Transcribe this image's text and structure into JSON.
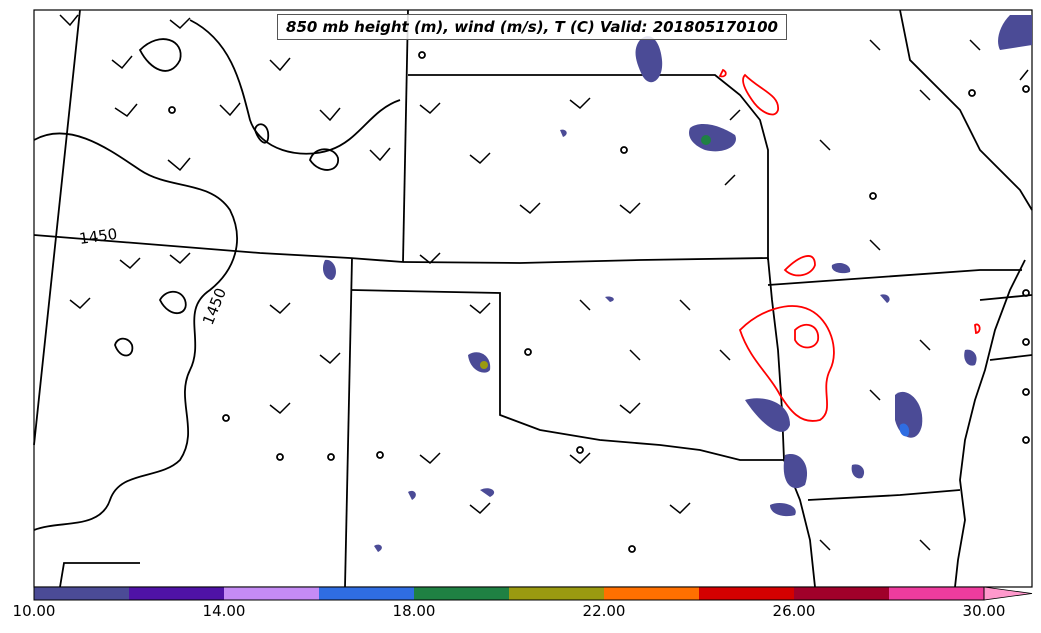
{
  "title": "850 mb height (m), wind (m/s), T (C) Valid: 201805170100",
  "contour_labels": [
    "1450",
    "1450"
  ],
  "colorbar": {
    "colors": [
      "#4b4b96",
      "#4f12a6",
      "#c58bf5",
      "#2f6de2",
      "#1f8143",
      "#9a9a10",
      "#ff7000",
      "#d40000",
      "#a0002a",
      "#ee3c9e",
      "#ff99cc"
    ],
    "tick_labels": [
      "10.00",
      "14.00",
      "18.00",
      "22.00",
      "26.00",
      "30.00"
    ]
  },
  "style": {
    "height_contour_color": "#000000",
    "temperature_contour_color": "#ff0000",
    "state_border_color": "#000000"
  }
}
